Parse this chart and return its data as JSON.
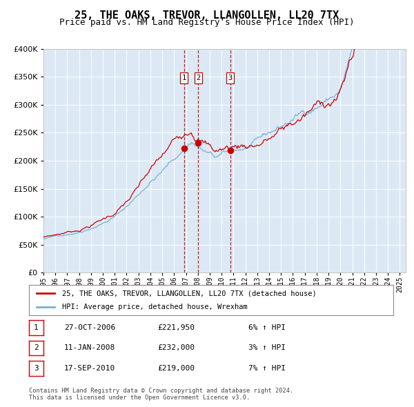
{
  "title": "25, THE OAKS, TREVOR, LLANGOLLEN, LL20 7TX",
  "subtitle": "Price paid vs. HM Land Registry's House Price Index (HPI)",
  "title_fontsize": 11,
  "subtitle_fontsize": 9,
  "background_color": "#ffffff",
  "plot_bg_color": "#dce9f5",
  "grid_color": "#ffffff",
  "red_line_color": "#cc0000",
  "blue_line_color": "#7bafd4",
  "sale_marker_color": "#cc0000",
  "vline_color": "#cc0000",
  "ylim": [
    0,
    400000
  ],
  "yticks": [
    0,
    50000,
    100000,
    150000,
    200000,
    250000,
    300000,
    350000,
    400000
  ],
  "x_start_year": 1995,
  "x_end_year": 2025,
  "sales": [
    {
      "label": "1",
      "year": 2006.83,
      "price": 221950,
      "date": "27-OCT-2006",
      "pct": "6%",
      "dir": "↑"
    },
    {
      "label": "2",
      "year": 2008.04,
      "price": 232000,
      "date": "11-JAN-2008",
      "pct": "3%",
      "dir": "↑"
    },
    {
      "label": "3",
      "year": 2010.72,
      "price": 219000,
      "date": "17-SEP-2010",
      "pct": "7%",
      "dir": "↑"
    }
  ],
  "legend_line1": "25, THE OAKS, TREVOR, LLANGOLLEN, LL20 7TX (detached house)",
  "legend_line2": "HPI: Average price, detached house, Wrexham",
  "footer1": "Contains HM Land Registry data © Crown copyright and database right 2024.",
  "footer2": "This data is licensed under the Open Government Licence v3.0."
}
